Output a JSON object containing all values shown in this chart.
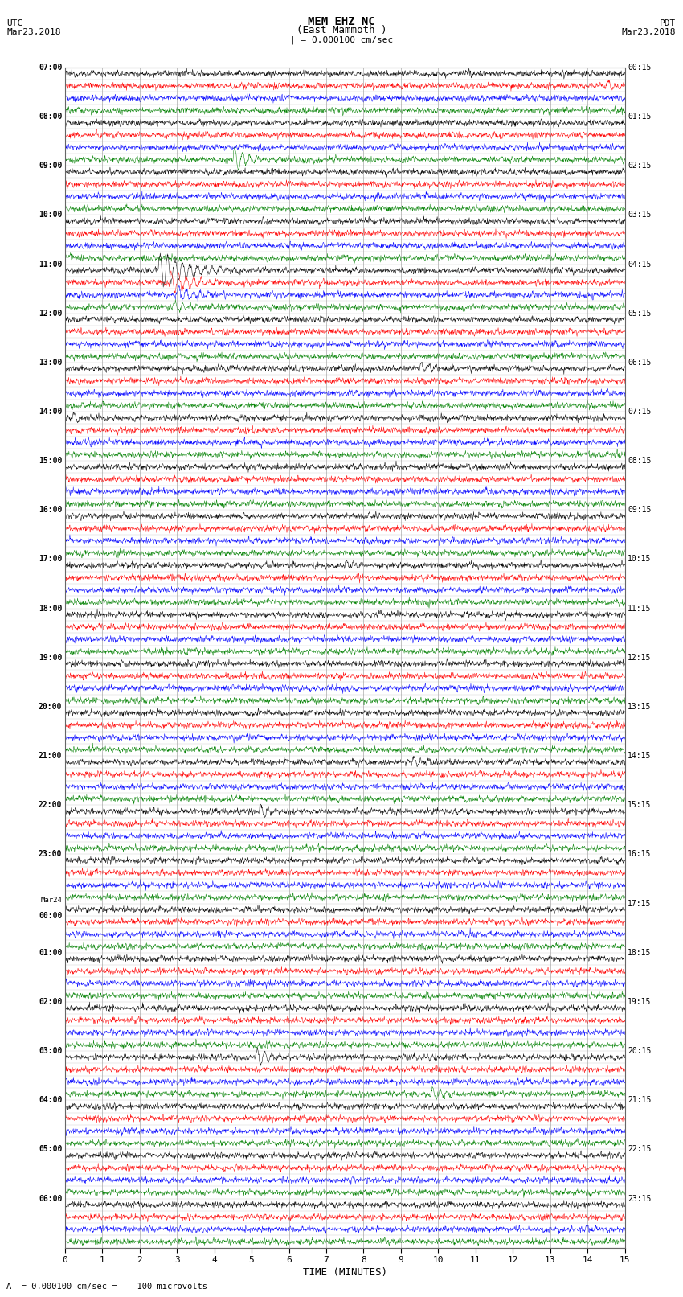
{
  "title_line1": "MEM EHZ NC",
  "title_line2": "(East Mammoth )",
  "scale_label": "| = 0.000100 cm/sec",
  "left_date_line1": "UTC",
  "left_date_line2": "Mar23,2018",
  "right_date_line1": "PDT",
  "right_date_line2": "Mar23,2018",
  "bottom_label": "A  = 0.000100 cm/sec =    100 microvolts",
  "xlabel": "TIME (MINUTES)",
  "left_times_utc": [
    "07:00",
    "",
    "",
    "",
    "08:00",
    "",
    "",
    "",
    "09:00",
    "",
    "",
    "",
    "10:00",
    "",
    "",
    "",
    "11:00",
    "",
    "",
    "",
    "12:00",
    "",
    "",
    "",
    "13:00",
    "",
    "",
    "",
    "14:00",
    "",
    "",
    "",
    "15:00",
    "",
    "",
    "",
    "16:00",
    "",
    "",
    "",
    "17:00",
    "",
    "",
    "",
    "18:00",
    "",
    "",
    "",
    "19:00",
    "",
    "",
    "",
    "20:00",
    "",
    "",
    "",
    "21:00",
    "",
    "",
    "",
    "22:00",
    "",
    "",
    "",
    "23:00",
    "",
    "",
    "",
    "Mar24",
    "00:00",
    "",
    "",
    "01:00",
    "",
    "",
    "",
    "02:00",
    "",
    "",
    "",
    "03:00",
    "",
    "",
    "",
    "04:00",
    "",
    "",
    "",
    "05:00",
    "",
    "",
    "",
    "06:00",
    "",
    "",
    ""
  ],
  "right_times_pdt": [
    "00:15",
    "",
    "",
    "",
    "01:15",
    "",
    "",
    "",
    "02:15",
    "",
    "",
    "",
    "03:15",
    "",
    "",
    "",
    "04:15",
    "",
    "",
    "",
    "05:15",
    "",
    "",
    "",
    "06:15",
    "",
    "",
    "",
    "07:15",
    "",
    "",
    "",
    "08:15",
    "",
    "",
    "",
    "09:15",
    "",
    "",
    "",
    "10:15",
    "",
    "",
    "",
    "11:15",
    "",
    "",
    "",
    "12:15",
    "",
    "",
    "",
    "13:15",
    "",
    "",
    "",
    "14:15",
    "",
    "",
    "",
    "15:15",
    "",
    "",
    "",
    "16:15",
    "",
    "",
    "",
    "17:15",
    "",
    "",
    "",
    "18:15",
    "",
    "",
    "",
    "19:15",
    "",
    "",
    "",
    "20:15",
    "",
    "",
    "",
    "21:15",
    "",
    "",
    "",
    "22:15",
    "",
    "",
    "",
    "23:15",
    "",
    "",
    ""
  ],
  "n_rows": 96,
  "n_cols": 4,
  "row_colors": [
    "black",
    "red",
    "blue",
    "green"
  ],
  "bg_color": "white",
  "plot_bg": "white",
  "grid_color": "#888888",
  "figsize": [
    8.5,
    16.13
  ],
  "dpi": 100,
  "xlim": [
    0,
    15
  ],
  "xticks": [
    0,
    1,
    2,
    3,
    4,
    5,
    6,
    7,
    8,
    9,
    10,
    11,
    12,
    13,
    14,
    15
  ]
}
